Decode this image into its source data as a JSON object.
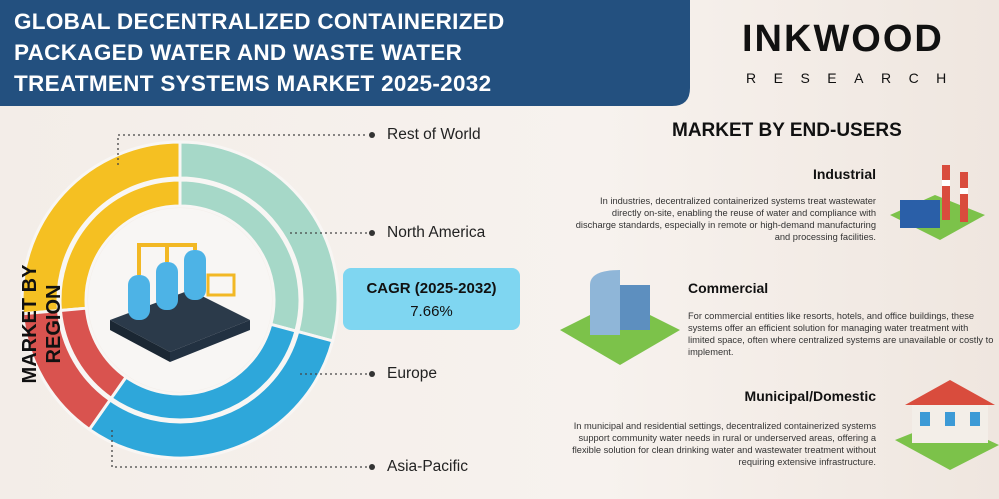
{
  "header": {
    "title_lines": [
      "GLOBAL DECENTRALIZED CONTAINERIZED",
      "PACKAGED WATER AND WASTE WATER",
      "TREATMENT SYSTEMS MARKET 2025-2032"
    ]
  },
  "brand": {
    "name": "INKWOOD",
    "tagline": "RESEARCH"
  },
  "region": {
    "heading": "MARKET BY REGION",
    "labels": [
      "Rest of World",
      "North America",
      "Europe",
      "Asia-Pacific"
    ]
  },
  "cagr": {
    "label": "CAGR (2025-2032)",
    "value": "7.66%"
  },
  "end_users": {
    "heading": "MARKET BY END-USERS",
    "items": [
      {
        "title": "Industrial",
        "text": "In industries, decentralized containerized systems treat wastewater directly on-site, enabling the reuse of water and compliance with discharge standards, especially in remote or high-demand manufacturing and processing facilities."
      },
      {
        "title": "Commercial",
        "text": "For commercial entities like resorts, hotels, and office buildings, these systems offer an efficient solution for managing water treatment with limited space, often where centralized systems are unavailable or costly to implement."
      },
      {
        "title": "Municipal/Domestic",
        "text": "In municipal and residential settings, decentralized containerized systems support community water needs in rural or underserved areas, offering a flexible solution for clean drinking water and wastewater treatment without requiring extensive infrastructure."
      }
    ]
  }
}
